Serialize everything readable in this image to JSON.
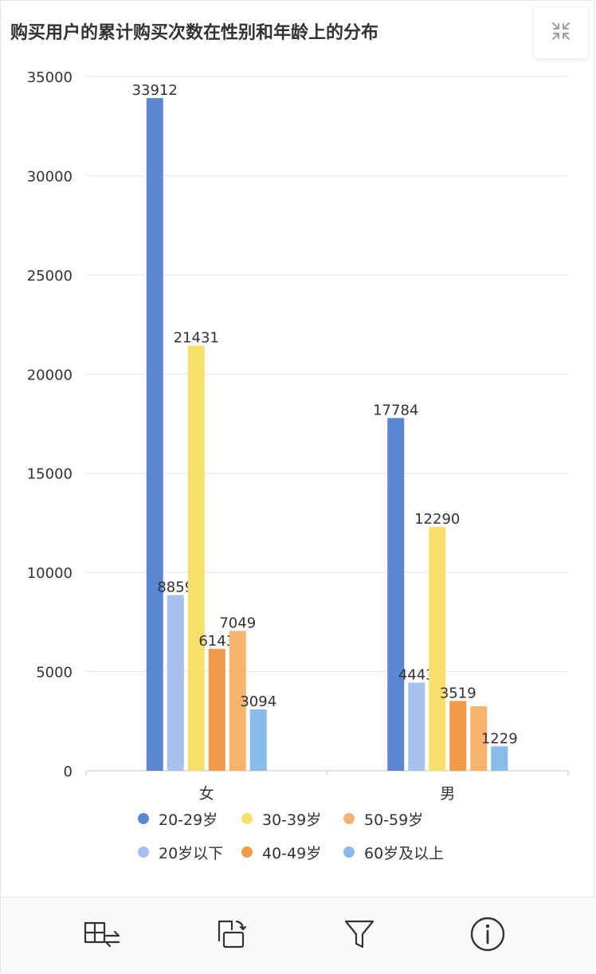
{
  "title": "购买用户的累计购买次数在性别和年龄上的分布",
  "collapse_icon": "collapse-arrows-icon",
  "colors": {
    "axis": "#d8d8d8",
    "grid": "#dfe3ea",
    "label": "#333333"
  },
  "chart_data": {
    "type": "bar",
    "categories": [
      "女",
      "男"
    ],
    "ylim": [
      0,
      35000
    ],
    "yticks": [
      0,
      5000,
      10000,
      15000,
      20000,
      25000,
      30000,
      35000
    ],
    "grid": true,
    "legend_position": "bottom",
    "series": [
      {
        "name": "20-29岁",
        "color": "#5b87d0",
        "values": [
          33912,
          17784
        ]
      },
      {
        "name": "20岁以下",
        "color": "#a8c0ee",
        "values": [
          8859,
          4443
        ]
      },
      {
        "name": "30-39岁",
        "color": "#f7df69",
        "values": [
          21431,
          12290
        ]
      },
      {
        "name": "40-49岁",
        "color": "#f29a48",
        "values": [
          6143,
          3519
        ]
      },
      {
        "name": "50-59岁",
        "color": "#f7b26e",
        "values": [
          7049,
          3250
        ]
      },
      {
        "name": "60岁及以上",
        "color": "#88bde9",
        "values": [
          3094,
          1229
        ]
      }
    ],
    "data_labels": [
      [
        "33912",
        "17784"
      ],
      [
        "8859",
        "4443"
      ],
      [
        "21431",
        "12290"
      ],
      [
        "6143",
        "3519"
      ],
      [
        "7049",
        ""
      ],
      [
        "3094",
        "1229"
      ]
    ]
  },
  "toolbar": [
    {
      "name": "swap-table-icon"
    },
    {
      "name": "rotate-screen-icon"
    },
    {
      "name": "filter-icon"
    },
    {
      "name": "info-icon"
    }
  ]
}
